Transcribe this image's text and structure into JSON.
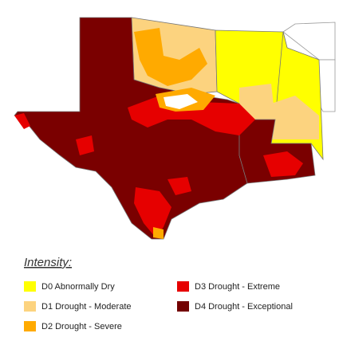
{
  "legend": {
    "title": "Intensity:",
    "items": [
      {
        "label": "D0 Abnormally Dry",
        "color": "#ffff00"
      },
      {
        "label": "D1 Drought - Moderate",
        "color": "#fcd37f"
      },
      {
        "label": "D2 Drought - Severe",
        "color": "#ffaa00"
      },
      {
        "label": "D3 Drought - Extreme",
        "color": "#e60000"
      },
      {
        "label": "D4 Drought - Exceptional",
        "color": "#730000"
      }
    ]
  }
}
